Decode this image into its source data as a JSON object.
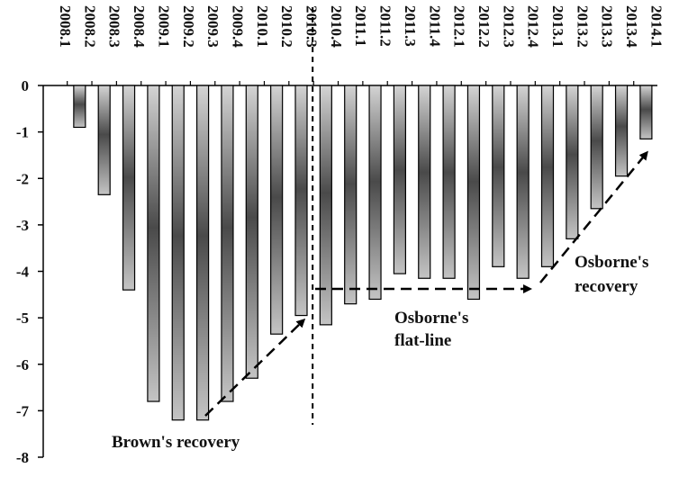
{
  "chart_data": {
    "type": "bar",
    "categories": [
      "2008.1",
      "2008.2",
      "2008.3",
      "2008.4",
      "2009.1",
      "2009.2",
      "2009.3",
      "2009.4",
      "2010.1",
      "2010.2",
      "2010.3",
      "2010.4",
      "2011.1",
      "2011.2",
      "2011.3",
      "2011.4",
      "2012.1",
      "2012.2",
      "2012.3",
      "2012.4",
      "2013.1",
      "2013.2",
      "2013.3",
      "2013.4",
      "2014.1"
    ],
    "values": [
      0,
      -0.9,
      -2.35,
      -4.4,
      -6.8,
      -7.2,
      -7.2,
      -6.8,
      -6.3,
      -5.35,
      -4.95,
      -5.15,
      -4.7,
      -4.6,
      -4.05,
      -4.15,
      -4.15,
      -4.6,
      -3.9,
      -4.15,
      -3.9,
      -3.3,
      -2.65,
      -1.95,
      -1.15
    ],
    "ylim": [
      -8,
      0
    ],
    "yticks": [
      "0",
      "-1",
      "-2",
      "-3",
      "-4",
      "-5",
      "-6",
      "-7",
      "-8"
    ],
    "title": "",
    "xlabel": "",
    "ylabel": "",
    "grid": false,
    "annotations": [
      {
        "name": "browns-recovery",
        "text": "Brown's recovery"
      },
      {
        "name": "osbornes-flat-line",
        "lines": [
          "Osborne's",
          "flat-line"
        ]
      },
      {
        "name": "osbornes-recovery",
        "lines": [
          "Osborne's",
          "recovery"
        ]
      }
    ],
    "divider_after": "2010.3"
  }
}
